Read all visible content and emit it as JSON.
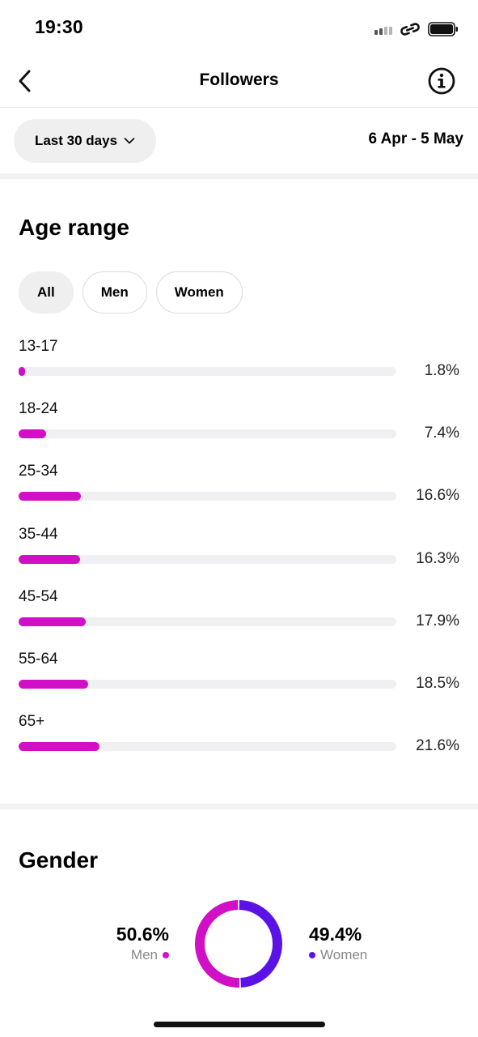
{
  "status": {
    "time": "19:30"
  },
  "nav": {
    "title": "Followers"
  },
  "filter": {
    "range_label": "Last 30 days",
    "date_range": "6 Apr - 5 May"
  },
  "age_section": {
    "title": "Age range",
    "chips": [
      {
        "label": "All",
        "active": true
      },
      {
        "label": "Men",
        "active": false
      },
      {
        "label": "Women",
        "active": false
      }
    ],
    "rows": [
      {
        "label": "13-17",
        "value": 1.8,
        "display": "1.8%"
      },
      {
        "label": "18-24",
        "value": 7.4,
        "display": "7.4%"
      },
      {
        "label": "25-34",
        "value": 16.6,
        "display": "16.6%"
      },
      {
        "label": "35-44",
        "value": 16.3,
        "display": "16.3%"
      },
      {
        "label": "45-54",
        "value": 17.9,
        "display": "17.9%"
      },
      {
        "label": "55-64",
        "value": 18.5,
        "display": "18.5%"
      },
      {
        "label": "65+",
        "value": 21.6,
        "display": "21.6%"
      }
    ]
  },
  "gender_section": {
    "title": "Gender",
    "men": {
      "pct": "50.6%",
      "label": "Men",
      "value": 50.6,
      "color": "#d10fc6"
    },
    "women": {
      "pct": "49.4%",
      "label": "Women",
      "value": 49.4,
      "color": "#5b12e6"
    }
  },
  "colors": {
    "bar": "#d10fc6",
    "track": "#f0f0f2"
  }
}
